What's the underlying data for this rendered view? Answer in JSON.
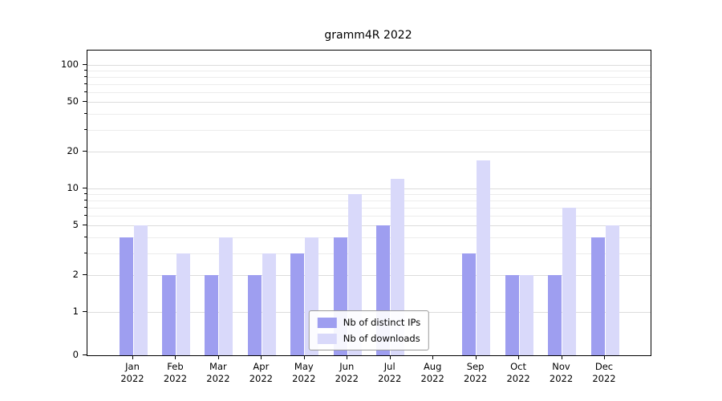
{
  "chart_data": {
    "type": "bar",
    "title": "gramm4R 2022",
    "yscale": "symlog",
    "grid": "horizontal",
    "legend_position": "lower center",
    "ylim": [
      0,
      130
    ],
    "yticks": [
      0,
      1,
      2,
      5,
      10,
      20,
      50,
      100
    ],
    "minor_gridlines": [
      3,
      4,
      6,
      7,
      8,
      9,
      30,
      40,
      60,
      70,
      80,
      90
    ],
    "categories": [
      {
        "month": "Jan",
        "year": "2022"
      },
      {
        "month": "Feb",
        "year": "2022"
      },
      {
        "month": "Mar",
        "year": "2022"
      },
      {
        "month": "Apr",
        "year": "2022"
      },
      {
        "month": "May",
        "year": "2022"
      },
      {
        "month": "Jun",
        "year": "2022"
      },
      {
        "month": "Jul",
        "year": "2022"
      },
      {
        "month": "Aug",
        "year": "2022"
      },
      {
        "month": "Sep",
        "year": "2022"
      },
      {
        "month": "Oct",
        "year": "2022"
      },
      {
        "month": "Nov",
        "year": "2022"
      },
      {
        "month": "Dec",
        "year": "2022"
      }
    ],
    "series": [
      {
        "name": "Nb of distinct IPs",
        "color": "#9e9ef0",
        "values": [
          4,
          2,
          2,
          2,
          3,
          4,
          5,
          0,
          3,
          2,
          2,
          4
        ]
      },
      {
        "name": "Nb of downloads",
        "color": "#d9d9fa",
        "values": [
          5,
          3,
          4,
          3,
          4,
          9,
          12,
          0,
          17,
          2,
          7,
          5
        ]
      }
    ]
  }
}
